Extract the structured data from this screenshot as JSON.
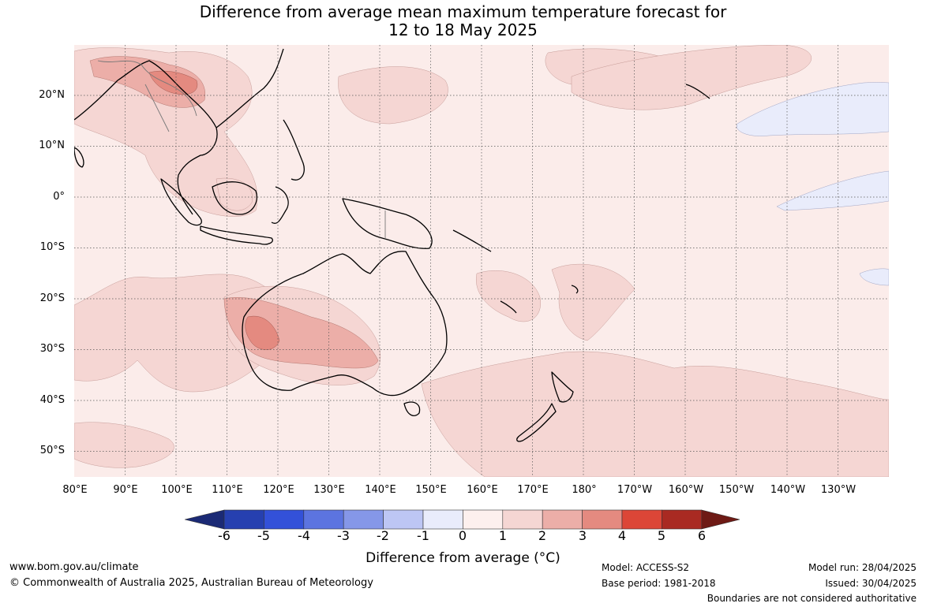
{
  "title": {
    "line1": "Difference from average mean maximum temperature forecast for",
    "line2": "12 to 18 May 2025"
  },
  "map": {
    "lat_labels": [
      "20°N",
      "10°N",
      "0°",
      "10°S",
      "20°S",
      "30°S",
      "40°S",
      "50°S"
    ],
    "lon_labels": [
      "80°E",
      "90°E",
      "100°E",
      "110°E",
      "120°E",
      "130°E",
      "140°E",
      "150°E",
      "160°E",
      "170°E",
      "180°",
      "170°W",
      "160°W",
      "150°W",
      "140°W",
      "130°W"
    ],
    "colors": {
      "ocean_background": "#fbecea",
      "class_1_to_2": "#f5d6d3",
      "class_2_to_3": "#ecaea8",
      "class_3_to_4": "#e48a80",
      "class_neg1_to_0": "#e9ecfb",
      "coast": "#000000",
      "graticule": "#555555"
    }
  },
  "colorbar": {
    "ticks": [
      "-6",
      "-5",
      "-4",
      "-3",
      "-2",
      "-1",
      "0",
      "1",
      "2",
      "3",
      "4",
      "5",
      "6"
    ],
    "colors": [
      "#1b2a75",
      "#2640b0",
      "#3351d9",
      "#5c74e0",
      "#8597e8",
      "#bdc6f4",
      "#e9ecfb",
      "#fdf0ee",
      "#f5d6d3",
      "#ecaea8",
      "#e48a80",
      "#dc4637",
      "#a92a22",
      "#6e1a15"
    ],
    "label": "Difference from average (°C)"
  },
  "footer": {
    "website": "www.bom.gov.au/climate",
    "copyright": "© Commonwealth of Australia 2025, Australian Bureau of Meteorology",
    "model": "Model: ACCESS-S2",
    "base_period": "Base period: 1981-2018",
    "model_run": "Model run: 28/04/2025",
    "issued": "Issued: 30/04/2025",
    "disclaimer": "Boundaries are not considered authoritative"
  }
}
